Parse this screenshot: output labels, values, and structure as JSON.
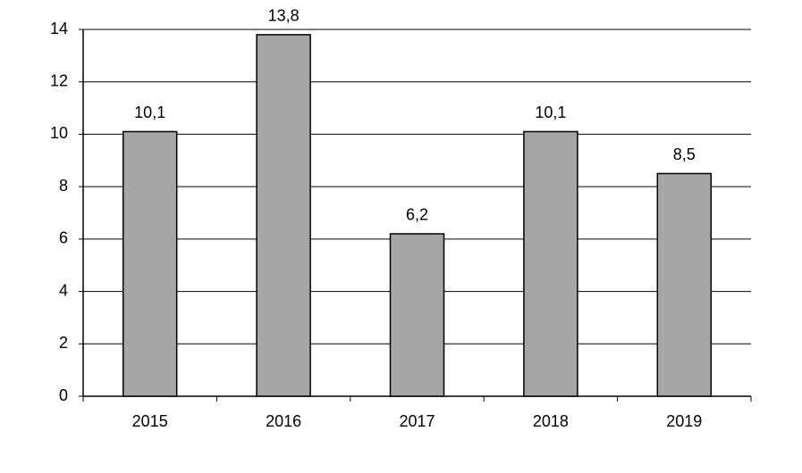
{
  "chart_data": {
    "type": "bar",
    "categories": [
      "2015",
      "2016",
      "2017",
      "2018",
      "2019"
    ],
    "values": [
      10.1,
      13.8,
      6.2,
      10.1,
      8.5
    ],
    "value_labels": [
      "10,1",
      "13,8",
      "6,2",
      "10,1",
      "8,5"
    ],
    "color": "#a6a6a6",
    "ylim": [
      0,
      14
    ],
    "yticks": [
      0,
      2,
      4,
      6,
      8,
      10,
      12,
      14
    ],
    "grid": true
  }
}
